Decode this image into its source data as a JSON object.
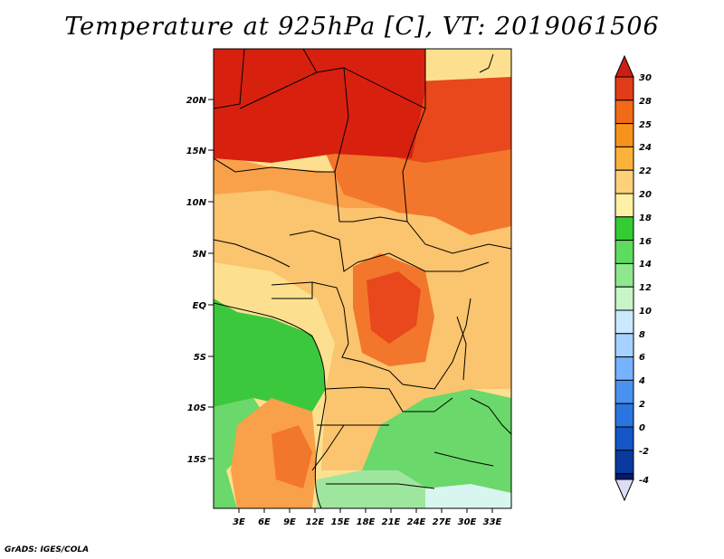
{
  "title": "Temperature at 925hPa [C], VT: 2019061506",
  "credit": "GrADS: IGES/COLA",
  "lat_labels": [
    "20N",
    "15N",
    "10N",
    "5N",
    "EQ",
    "5S",
    "10S",
    "15S"
  ],
  "lon_labels": [
    "3E",
    "6E",
    "9E",
    "12E",
    "15E",
    "18E",
    "21E",
    "24E",
    "27E",
    "30E",
    "33E"
  ],
  "colorbar": {
    "labels": [
      "30",
      "28",
      "25",
      "24",
      "22",
      "20",
      "18",
      "16",
      "14",
      "12",
      "10",
      "8",
      "6",
      "4",
      "2",
      "0",
      "-2",
      "-4"
    ],
    "colors": [
      "#e03c17",
      "#f06a17",
      "#f7921c",
      "#fbb23b",
      "#fdd17a",
      "#fdf1a6",
      "#33cc33",
      "#5ddc5d",
      "#8ee88e",
      "#c8f5c8",
      "#cce8ff",
      "#a6d2ff",
      "#77b2ff",
      "#4a92f0",
      "#2c74e0",
      "#1456c8",
      "#0a3a9e",
      "#061a66"
    ],
    "top_arrow_color": "#cc1e12",
    "bottom_arrow_color": "#dcdcf5"
  },
  "map_colors": {
    "t30": "#d8200f",
    "t28": "#e8481b",
    "t25": "#f2762b",
    "t24": "#f9a04a",
    "t22": "#fbc46e",
    "t20": "#fde08f",
    "t18": "#fdf3b4",
    "g1": "#3cc83c",
    "g2": "#6ad86a",
    "g3": "#9ee69e",
    "g4": "#d8f6f0"
  }
}
